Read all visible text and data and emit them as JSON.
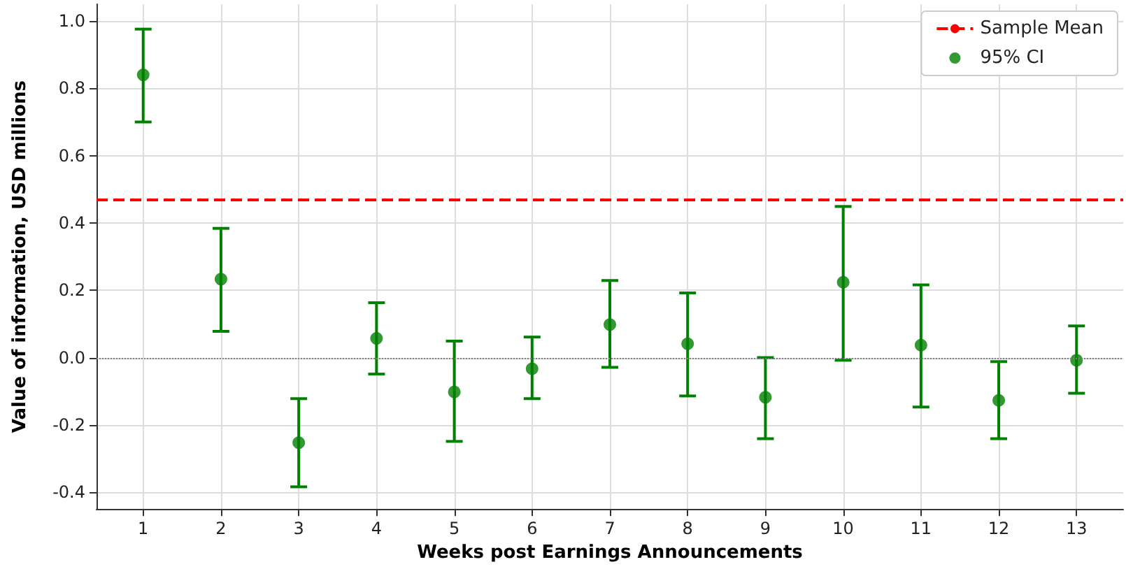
{
  "chart_data": {
    "type": "scatter",
    "xlabel": "Weeks post Earnings Announcements",
    "ylabel": "Value of information, USD millions",
    "x": [
      1,
      2,
      3,
      4,
      5,
      6,
      7,
      8,
      9,
      10,
      11,
      12,
      13
    ],
    "series": [
      {
        "name": "95% CI",
        "color": "#008000",
        "values": [
          0.84,
          0.233,
          -0.253,
          0.057,
          -0.102,
          -0.033,
          0.098,
          0.041,
          -0.118,
          0.224,
          0.037,
          -0.127,
          -0.008
        ],
        "errors": [
          [
            0.7,
            0.976
          ],
          [
            0.078,
            0.384
          ],
          [
            -0.384,
            -0.122
          ],
          [
            -0.049,
            0.163
          ],
          [
            -0.249,
            0.049
          ],
          [
            -0.122,
            0.061
          ],
          [
            -0.029,
            0.229
          ],
          [
            -0.114,
            0.192
          ],
          [
            -0.241,
            0.0
          ],
          [
            -0.008,
            0.449
          ],
          [
            -0.147,
            0.216
          ],
          [
            -0.241,
            -0.012
          ],
          [
            -0.106,
            0.094
          ]
        ]
      }
    ],
    "ref_lines": [
      {
        "axis": "y",
        "value": 0.469,
        "label": "Sample Mean",
        "color": "#ff0000",
        "line_style": "dashed"
      },
      {
        "axis": "y",
        "value": 0,
        "color": "#808080",
        "line_style": "dotted"
      }
    ],
    "xlim": [
      0.4,
      13.6
    ],
    "xticks": [
      1,
      2,
      3,
      4,
      5,
      6,
      7,
      8,
      9,
      10,
      11,
      12,
      13
    ],
    "ylim": [
      -0.45,
      1.05
    ],
    "yticks": [
      -0.4,
      -0.2,
      {
        "value": 0,
        "label": "0.0"
      },
      0.2,
      0.4,
      0.6,
      0.8,
      {
        "value": 1,
        "label": "1.0"
      }
    ],
    "grid": true,
    "legend": "top right",
    "marker": "circle"
  }
}
